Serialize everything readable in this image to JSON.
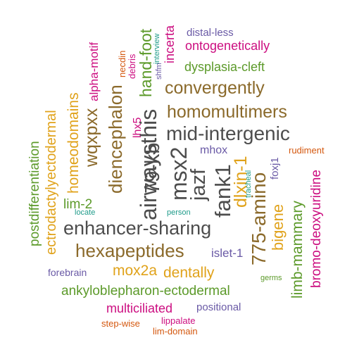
{
  "colors": {
    "gray": "#4d4d4d",
    "brown": "#8b6a2b",
    "green": "#5c9a2a",
    "magenta": "#cc0e80",
    "purple": "#6a5aa6",
    "orange": "#d4580f",
    "gold": "#e0a21a",
    "teal": "#1f9b8a"
  },
  "words": [
    "distal-less",
    "ontogenetically",
    "dysplasia-cleft",
    "convergently",
    "homomultimers",
    "mid-intergenic",
    "mhox",
    "rudiment",
    "lim-2",
    "locate",
    "person",
    "enhancer-sharing",
    "hexapeptides",
    "islet-1",
    "forebrain",
    "mox2a",
    "dentally",
    "germs",
    "ankyloblepharon-ectodermal",
    "multiciliated",
    "positional",
    "step-wise",
    "lippalate",
    "lim-domain",
    "postdifferentiation",
    "ectrodactylyectodermal",
    "homeodomains",
    "wqxpxx",
    "alpha-motif",
    "diencephalon",
    "necdin",
    "debris",
    "hand-foot",
    "interview",
    "shfm",
    "incerta",
    "lhx5",
    "79-kb",
    "airwaysthis",
    "msx2",
    "jazf",
    "fank1",
    "dlxin-1",
    "775-amino",
    "tracheal",
    "bigene",
    "foxj1",
    "limb-mammary",
    "bromo-deoxyuridine"
  ]
}
